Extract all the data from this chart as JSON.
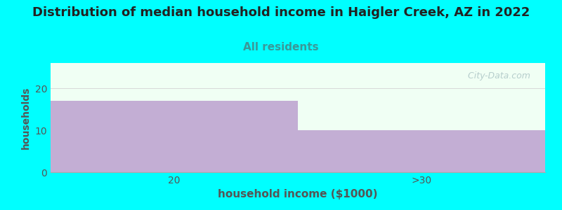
{
  "title": "Distribution of median household income in Haigler Creek, AZ in 2022",
  "subtitle": "All residents",
  "xlabel": "household income ($1000)",
  "ylabel": "households",
  "categories": [
    "20",
    ">30"
  ],
  "values": [
    17,
    10
  ],
  "bar_color": "#c3aed4",
  "background_color": "#00ffff",
  "plot_bg_color": "#f0fff4",
  "ylim": [
    0,
    26
  ],
  "yticks": [
    0,
    10,
    20
  ],
  "title_fontsize": 13,
  "subtitle_fontsize": 11,
  "subtitle_color": "#3a9898",
  "title_color": "#222222",
  "xlabel_fontsize": 11,
  "ylabel_fontsize": 10,
  "tick_color": "#555555",
  "watermark_text": "  City-Data.com",
  "watermark_color": "#b0c8c8",
  "grid_color": "#d8d8d8"
}
